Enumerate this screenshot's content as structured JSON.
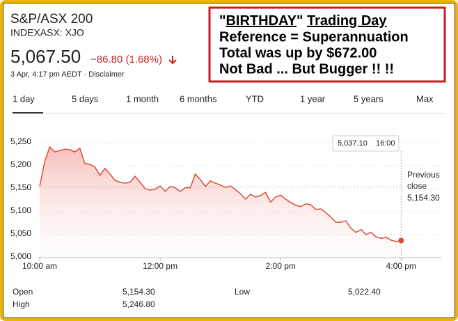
{
  "header": {
    "name": "S&P/ASX 200",
    "ticker": "INDEXASX: XJO",
    "price": "5,067.50",
    "change": "−86.80 (1.68%)",
    "timestamp": "3 Apr, 4:17 pm AEDT · Disclaimer"
  },
  "annotation": {
    "line1": [
      "\"",
      "BIRTHDAY",
      "\" ",
      "Trading Day"
    ],
    "lines": [
      "Reference = Superannuation",
      "Total was up by $672.00",
      "Not Bad ... But Bugger !! !!"
    ]
  },
  "tabs": [
    "1 day",
    "5 days",
    "1 month",
    "6 months",
    "YTD",
    "1 year",
    "5 years",
    "Max"
  ],
  "chart_data": {
    "type": "line",
    "color": "#dd4b39",
    "x": [
      "10:00",
      "10:05",
      "10:10",
      "10:15",
      "10:20",
      "10:25",
      "10:30",
      "10:35",
      "10:40",
      "10:45",
      "10:50",
      "10:55",
      "11:00",
      "11:05",
      "11:10",
      "11:15",
      "11:20",
      "11:25",
      "11:30",
      "11:35",
      "11:40",
      "11:45",
      "11:50",
      "11:55",
      "12:00",
      "12:05",
      "12:10",
      "12:15",
      "12:20",
      "12:25",
      "12:30",
      "12:35",
      "12:40",
      "12:45",
      "12:50",
      "12:55",
      "13:00",
      "13:05",
      "13:10",
      "13:15",
      "13:20",
      "13:25",
      "13:30",
      "13:35",
      "13:40",
      "13:45",
      "13:50",
      "13:55",
      "14:00",
      "14:05",
      "14:10",
      "14:15",
      "14:20",
      "14:25",
      "14:30",
      "14:35",
      "14:40",
      "14:45",
      "14:50",
      "14:55",
      "15:00",
      "15:05",
      "15:10",
      "15:15",
      "15:20",
      "15:25",
      "15:30",
      "15:35",
      "15:40",
      "15:45",
      "15:50",
      "15:55",
      "16:00"
    ],
    "values": [
      5155,
      5209,
      5241,
      5230,
      5233,
      5236,
      5235,
      5230,
      5238,
      5205,
      5203,
      5197,
      5179,
      5194,
      5182,
      5168,
      5164,
      5162,
      5164,
      5177,
      5164,
      5150,
      5147,
      5149,
      5156,
      5144,
      5155,
      5152,
      5144,
      5152,
      5152,
      5182,
      5170,
      5155,
      5167,
      5162,
      5158,
      5153,
      5156,
      5148,
      5139,
      5127,
      5138,
      5132,
      5135,
      5142,
      5121,
      5132,
      5136,
      5127,
      5120,
      5114,
      5111,
      5117,
      5115,
      5105,
      5106,
      5098,
      5088,
      5077,
      5077,
      5080,
      5064,
      5055,
      5061,
      5050,
      5055,
      5045,
      5042,
      5044,
      5038,
      5035,
      5037.1
    ],
    "last_label": "5,037.10",
    "previous_close": {
      "label": [
        "Previous",
        "close"
      ],
      "value": 5154.3,
      "value_label": "5,154.30"
    },
    "xlim": [
      "10:00",
      "16:40"
    ],
    "xticks": [
      {
        "value": "10:00",
        "label": "10:00 am"
      },
      {
        "value": "12:00",
        "label": "12:00 pm"
      },
      {
        "value": "14:00",
        "label": "2:00 pm"
      },
      {
        "value": "16:00",
        "label": "4:00 pm"
      }
    ],
    "ylim": [
      5000,
      5290
    ],
    "yticks": [
      {
        "value": 5000,
        "label": "5,000"
      },
      {
        "value": 5050,
        "label": "5,050"
      },
      {
        "value": 5100,
        "label": "5,100"
      },
      {
        "value": 5150,
        "label": "5,150"
      },
      {
        "value": 5200,
        "label": "5,200"
      },
      {
        "value": 5250,
        "label": "5,250"
      }
    ],
    "grid": true
  },
  "stats": [
    [
      "Open",
      "5,154.30"
    ],
    [
      "High",
      "5,246.80"
    ],
    [
      "Low",
      "5,022.40"
    ]
  ]
}
